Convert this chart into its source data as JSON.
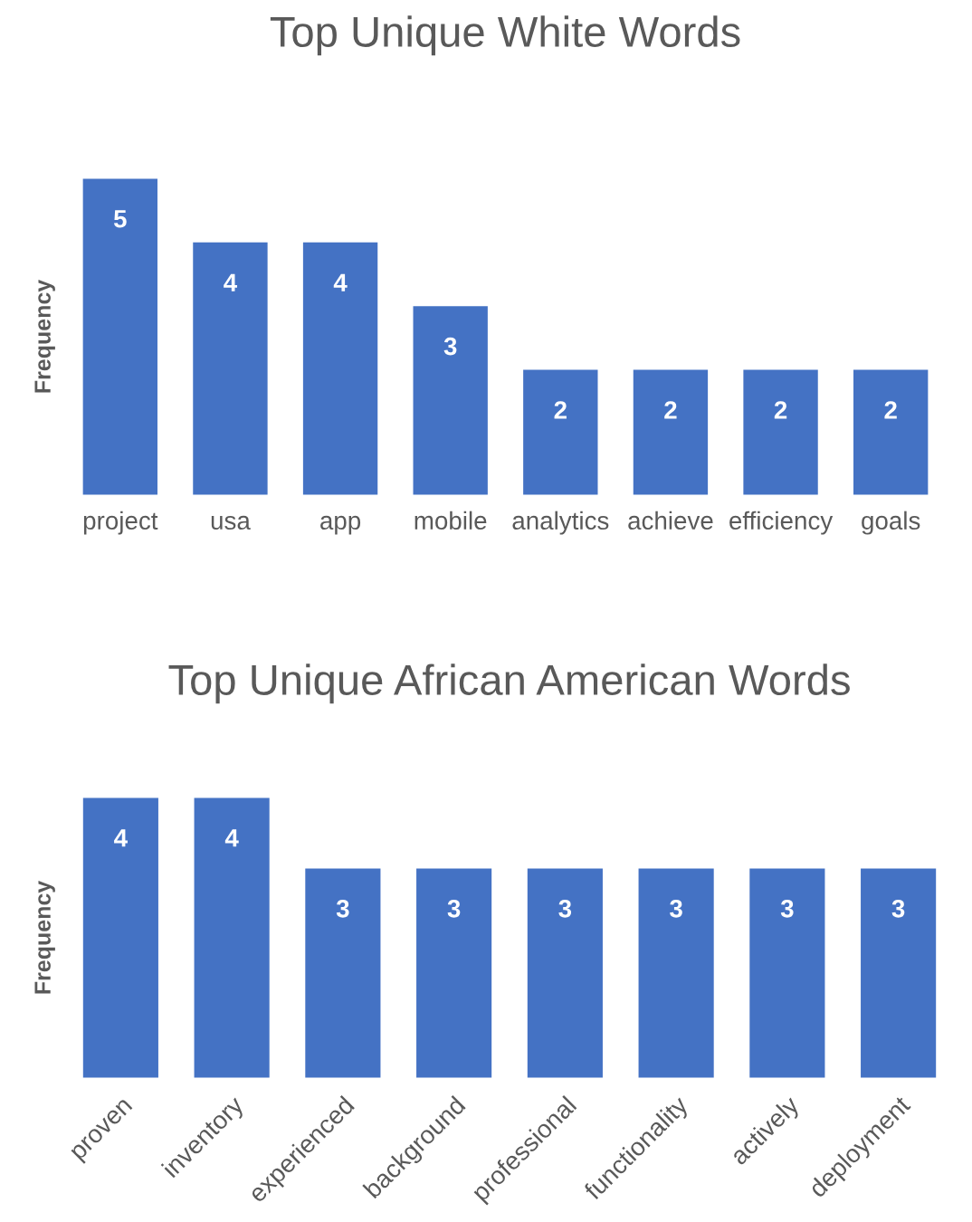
{
  "chart_data": [
    {
      "type": "bar",
      "title": "Top Unique White Words",
      "ylabel": "Frequency",
      "categories": [
        "project",
        "usa",
        "app",
        "mobile",
        "analytics",
        "achieve",
        "efficiency",
        "goals"
      ],
      "values": [
        5,
        4,
        4,
        3,
        2,
        2,
        2,
        2
      ],
      "color": "#4472c4",
      "data_labels": true,
      "tick_labels": "x"
    },
    {
      "type": "bar",
      "title": "Top Unique African American Words",
      "ylabel": "Frequency",
      "categories": [
        "proven",
        "inventory",
        "experienced",
        "background",
        "professional",
        "functionality",
        "actively",
        "deployment"
      ],
      "values": [
        4,
        4,
        3,
        3,
        3,
        3,
        3,
        3
      ],
      "color": "#4472c4",
      "data_labels": true,
      "tick_labels": "x"
    }
  ]
}
